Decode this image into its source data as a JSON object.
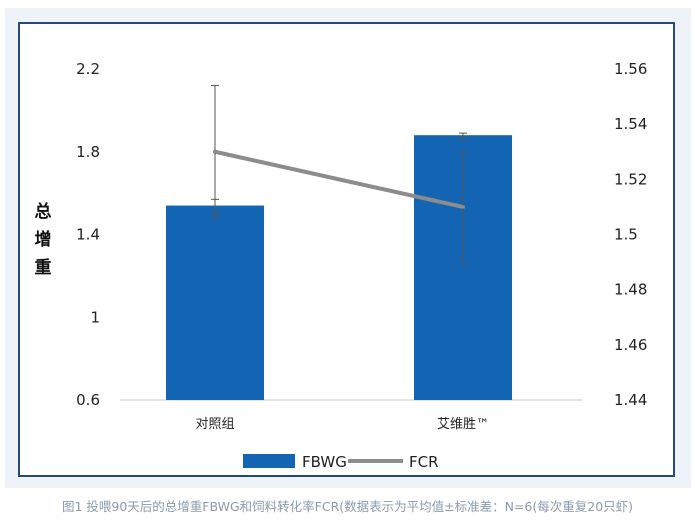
{
  "chart_data": {
    "type": "bar+line",
    "categories": [
      "对照组",
      "艾维胜™"
    ],
    "series": [
      {
        "name": "FBWG",
        "type": "bar",
        "axis": "left",
        "values": [
          1.54,
          1.88
        ],
        "error_low": [
          1.48,
          1.86
        ],
        "error_high": [
          1.57,
          1.89
        ],
        "color": "#1464b4"
      },
      {
        "name": "FCR",
        "type": "line",
        "axis": "right",
        "values": [
          1.53,
          1.51
        ],
        "error_low": [
          1.508,
          1.49
        ],
        "error_high": [
          1.554,
          1.53
        ],
        "color": "#8c8c8c"
      }
    ],
    "ylabel": "总增重",
    "ylim_left": [
      0.6,
      2.2
    ],
    "yticks_left": [
      "2.2",
      "1.8",
      "1.4",
      "1",
      "0.6"
    ],
    "ylim_right": [
      1.44,
      1.56
    ],
    "yticks_right": [
      "1.56",
      "1.54",
      "1.52",
      "1.5",
      "1.48",
      "1.46",
      "1.44"
    ],
    "grid": false,
    "legend_position": "bottom"
  },
  "caption": "图1 投喂90天后的总增重FBWG和饲料转化率FCR(数据表示为平均值±标准差：N=6(每次重复20只虾)"
}
